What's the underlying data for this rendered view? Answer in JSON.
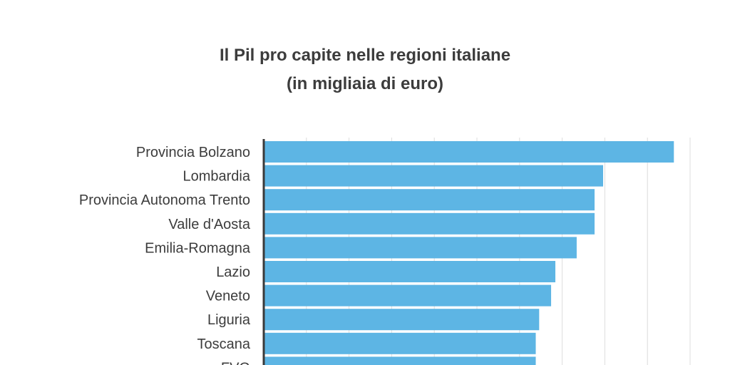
{
  "title_line1": "Il Pil pro capite nelle regioni italiane",
  "title_line2": "(in migliaia di euro)",
  "bar_color": "#5db5e4",
  "chart_data": {
    "type": "bar",
    "orientation": "horizontal",
    "title": "Il Pil pro capite nelle regioni italiane (in migliaia di euro)",
    "categories": [
      "Provincia Bolzano",
      "Lombardia",
      "Provincia Autonoma Trento",
      "Valle d'Aosta",
      "Emilia-Romagna",
      "Lazio",
      "Veneto",
      "Liguria",
      "Toscana",
      "FVG"
    ],
    "values": [
      48.1,
      39.8,
      38.8,
      38.8,
      36.7,
      34.2,
      33.7,
      32.3,
      31.9,
      31.9
    ],
    "xlim": [
      0,
      50
    ],
    "grid": true
  }
}
